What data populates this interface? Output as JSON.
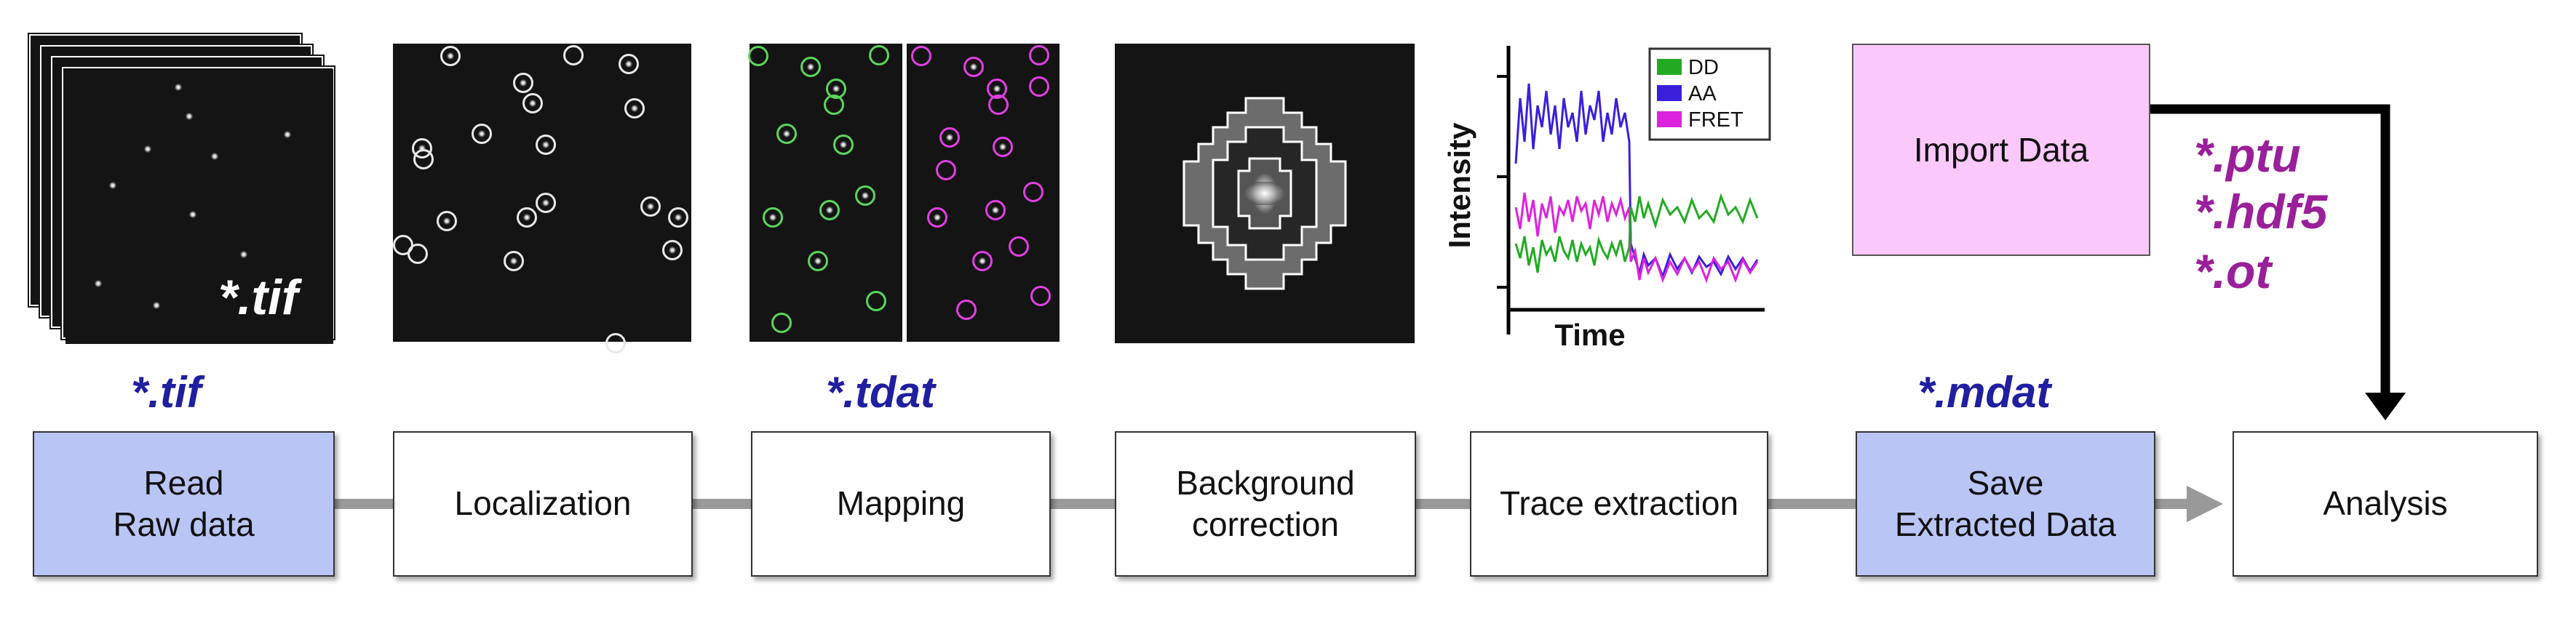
{
  "stack_label": "*.tif",
  "file_labels": {
    "read": "*.tif",
    "mapping": "*.tdat",
    "save": "*.mdat"
  },
  "import_box": {
    "label": "Import Data",
    "formats": [
      "*.ptu",
      "*.hdf5",
      "*.ot"
    ]
  },
  "steps": [
    {
      "label": "Read\nRaw data",
      "highlight": true
    },
    {
      "label": "Localization",
      "highlight": false
    },
    {
      "label": "Mapping",
      "highlight": false
    },
    {
      "label": "Background\ncorrection",
      "highlight": false
    },
    {
      "label": "Trace extraction",
      "highlight": false
    },
    {
      "label": "Save\nExtracted Data",
      "highlight": true
    },
    {
      "label": "Analysis",
      "highlight": false
    }
  ],
  "colors": {
    "highlight_fill": "#b9c6f5",
    "import_fill": "#fac8fa",
    "file_label_blue": "#1f1fa0",
    "file_label_purple": "#9a1f9a",
    "connector": "#999999"
  },
  "trace_plot": {
    "xlabel": "Time",
    "ylabel": "Intensity",
    "legend": [
      {
        "name": "DD",
        "color": "#22aa22"
      },
      {
        "name": "AA",
        "color": "#3a1fdd"
      },
      {
        "name": "FRET",
        "color": "#dd22dd"
      }
    ]
  }
}
